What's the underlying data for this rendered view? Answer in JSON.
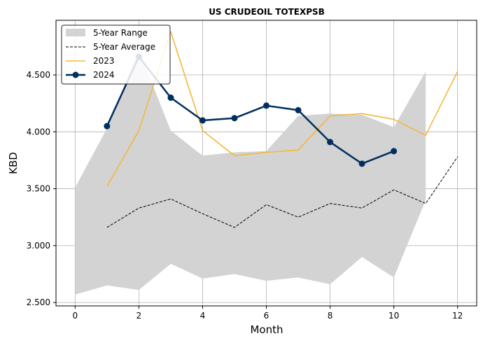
{
  "chart_data": {
    "type": "line",
    "title": "US CRUDEOIL TOTEXPSB",
    "xlabel": "Month",
    "ylabel": "KBD",
    "xlim": [
      -0.6,
      12.6
    ],
    "ylim": [
      2470,
      4980
    ],
    "xticks": [
      0,
      2,
      4,
      6,
      8,
      10,
      12
    ],
    "xtick_labels": [
      "0",
      "2",
      "4",
      "6",
      "8",
      "10",
      "12"
    ],
    "yticks": [
      2500,
      3000,
      3500,
      4000,
      4500
    ],
    "ytick_labels": [
      "2.500",
      "3.000",
      "3.500",
      "4.000",
      "4.500"
    ],
    "grid": true,
    "legend_position": "top-left",
    "colors": {
      "range": "#d3d3d3",
      "average": "#000000",
      "y2023": "#f5b73b",
      "y2024": "#002f5f",
      "grid": "#b0b0b0"
    },
    "range_band": {
      "name": "5-Year Range",
      "x": [
        0,
        1,
        2,
        3,
        4,
        5,
        6,
        7,
        8,
        9,
        10,
        11
      ],
      "upper": [
        3510,
        4030,
        4720,
        4010,
        3790,
        3820,
        3830,
        4140,
        4160,
        4150,
        4040,
        4530
      ],
      "lower": [
        2570,
        2650,
        2610,
        2840,
        2710,
        2750,
        2690,
        2720,
        2660,
        2900,
        2720,
        3400
      ]
    },
    "series": [
      {
        "name": "5-Year Average",
        "style": "dashed",
        "x": [
          1,
          2,
          3,
          4,
          5,
          6,
          7,
          8,
          9,
          10,
          11,
          12
        ],
        "values": [
          3160,
          3330,
          3410,
          3280,
          3160,
          3360,
          3250,
          3370,
          3330,
          3490,
          3370,
          3780
        ]
      },
      {
        "name": "2023",
        "style": "solid",
        "x": [
          1,
          2,
          3,
          4,
          5,
          6,
          7,
          8,
          9,
          10,
          11,
          12
        ],
        "values": [
          3520,
          4010,
          4880,
          4010,
          3790,
          3820,
          3840,
          4140,
          4160,
          4110,
          3970,
          4530
        ]
      },
      {
        "name": "2024",
        "style": "solid-markers",
        "x": [
          1,
          2,
          3,
          4,
          5,
          6,
          7,
          8,
          9,
          10
        ],
        "values": [
          4050,
          4660,
          4300,
          4100,
          4120,
          4230,
          4190,
          3910,
          3720,
          3830
        ]
      }
    ]
  }
}
